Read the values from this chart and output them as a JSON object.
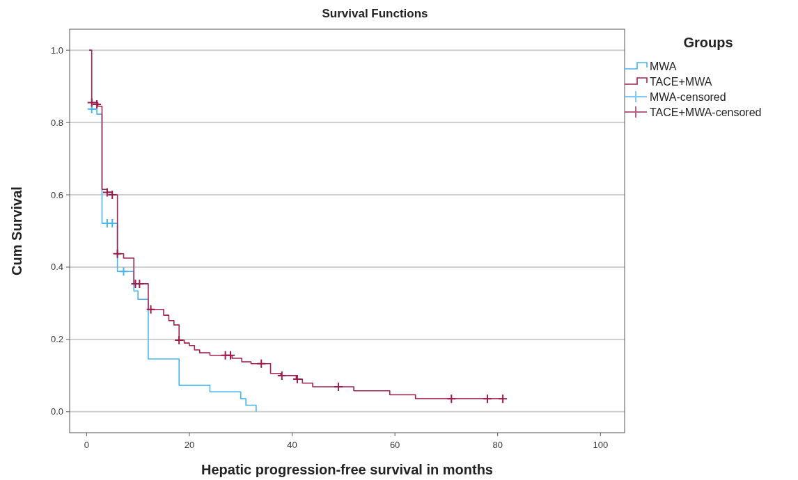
{
  "chart_data": {
    "type": "step",
    "title": "Survival Functions",
    "xlabel": "Hepatic progression-free survival in months",
    "ylabel": "Cum Survival",
    "legend_title": "Groups",
    "legend": "right",
    "grid": "y",
    "xlim": [
      -3.3,
      104.7
    ],
    "xticks": [
      0,
      20,
      40,
      60,
      80,
      100
    ],
    "ylim": [
      -0.058,
      1.058
    ],
    "yticks": [
      {
        "value": 0,
        "label": "0.0"
      },
      {
        "value": 0.2,
        "label": "0.2"
      },
      {
        "value": 0.4,
        "label": "0.4"
      },
      {
        "value": 0.6,
        "label": "0.6"
      },
      {
        "value": 0.8,
        "label": "0.8"
      },
      {
        "value": 1,
        "label": "1.0"
      }
    ],
    "series": [
      {
        "name": "MWA",
        "color": "#45b5f0",
        "marker": "none",
        "x": [
          1,
          2,
          3,
          6,
          9.2,
          10,
          12,
          18,
          24,
          30,
          31,
          33
        ],
        "values": [
          0.837,
          0.823,
          0.521,
          0.388,
          0.334,
          0.311,
          0.146,
          0.073,
          0.055,
          0.036,
          0.018,
          0
        ]
      },
      {
        "name": "TACE+MWA",
        "color": "#a3234f",
        "marker": "none",
        "x": [
          0.5,
          1,
          2.2,
          3,
          4,
          5,
          6,
          7.2,
          9.2,
          12,
          15,
          16,
          17,
          18,
          19,
          20,
          21,
          22,
          24,
          28.3,
          30.2,
          32,
          35.8,
          37.8,
          40.8,
          42,
          44,
          52,
          59,
          64,
          81
        ],
        "values": [
          1,
          0.855,
          0.845,
          0.615,
          0.607,
          0.6,
          0.437,
          0.425,
          0.354,
          0.283,
          0.267,
          0.252,
          0.24,
          0.198,
          0.19,
          0.183,
          0.171,
          0.163,
          0.156,
          0.148,
          0.138,
          0.133,
          0.106,
          0.1,
          0.09,
          0.079,
          0.069,
          0.058,
          0.047,
          0.036,
          0.036
        ]
      },
      {
        "name": "MWA-censored",
        "type": "scatter",
        "color": "#45b5f0",
        "marker": "cross",
        "x": [
          1,
          4,
          5,
          7.2
        ],
        "values": [
          0.837,
          0.521,
          0.521,
          0.388
        ]
      },
      {
        "name": "TACE+MWA-censored",
        "type": "scatter",
        "color": "#9b1b4b",
        "marker": "cross",
        "x": [
          1,
          2,
          4,
          5,
          6,
          9.5,
          10.3,
          12.5,
          18,
          27,
          28,
          34,
          38,
          41,
          49,
          71,
          78,
          81
        ],
        "values": [
          0.855,
          0.85,
          0.607,
          0.6,
          0.437,
          0.354,
          0.354,
          0.283,
          0.198,
          0.156,
          0.156,
          0.133,
          0.1,
          0.09,
          0.069,
          0.036,
          0.036,
          0.036
        ]
      }
    ]
  }
}
